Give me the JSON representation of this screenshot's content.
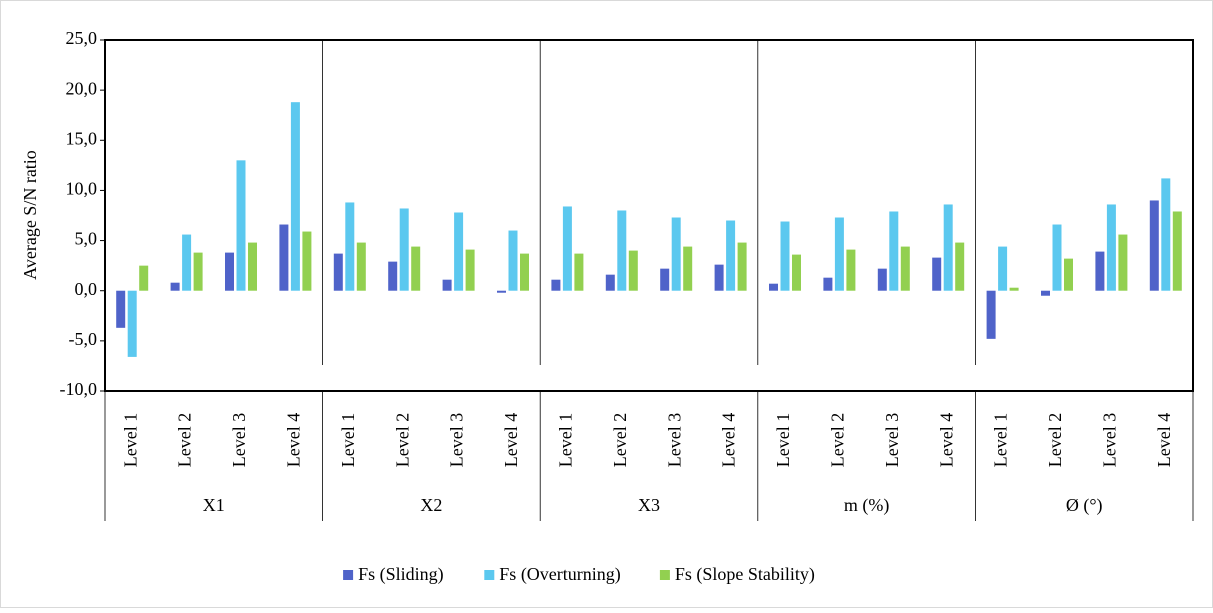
{
  "chart_data": {
    "type": "bar",
    "y_label": "Average S/N ratio",
    "categories": [
      "Level 1",
      "Level 2",
      "Level 3",
      "Level 4",
      "Level 1",
      "Level 2",
      "Level 3",
      "Level 4",
      "Level 1",
      "Level 2",
      "Level 3",
      "Level 4",
      "Level 1",
      "Level 2",
      "Level 3",
      "Level 4",
      "Level 1",
      "Level 2",
      "Level 3",
      "Level 4"
    ],
    "groups": [
      "X1",
      "X2",
      "X3",
      "m (%)",
      "Ø (°)"
    ],
    "series": [
      {
        "name": "Fs (Sliding)",
        "color": "#4f63c9",
        "values": [
          -3.7,
          0.8,
          3.8,
          6.6,
          3.7,
          2.9,
          1.1,
          -0.2,
          1.1,
          1.6,
          2.2,
          2.6,
          0.7,
          1.3,
          2.2,
          3.3,
          -4.8,
          -0.5,
          3.9,
          9.0
        ]
      },
      {
        "name": "Fs (Overturning)",
        "color": "#5bc8ef",
        "values": [
          -6.6,
          5.6,
          13.0,
          18.8,
          8.8,
          8.2,
          7.8,
          6.0,
          8.4,
          8.0,
          7.3,
          7.0,
          6.9,
          7.3,
          7.9,
          8.6,
          4.4,
          6.6,
          8.6,
          11.2
        ]
      },
      {
        "name": "Fs (Slope Stability)",
        "color": "#92d050",
        "values": [
          2.5,
          3.8,
          4.8,
          5.9,
          4.8,
          4.4,
          4.1,
          3.7,
          3.7,
          4.0,
          4.4,
          4.8,
          3.6,
          4.1,
          4.4,
          4.8,
          0.3,
          3.2,
          5.6,
          7.9
        ]
      }
    ],
    "ylim": [
      -10,
      25
    ],
    "yticks": [
      {
        "value": -10,
        "label": "-10,0"
      },
      {
        "value": -5,
        "label": "-5,0"
      },
      {
        "value": 0,
        "label": "0,0"
      },
      {
        "value": 5,
        "label": "5,0"
      },
      {
        "value": 10,
        "label": "10,0"
      },
      {
        "value": 15,
        "label": "15,0"
      },
      {
        "value": 20,
        "label": "20,0"
      },
      {
        "value": 25,
        "label": "25,0"
      }
    ],
    "legend": "bottom"
  }
}
